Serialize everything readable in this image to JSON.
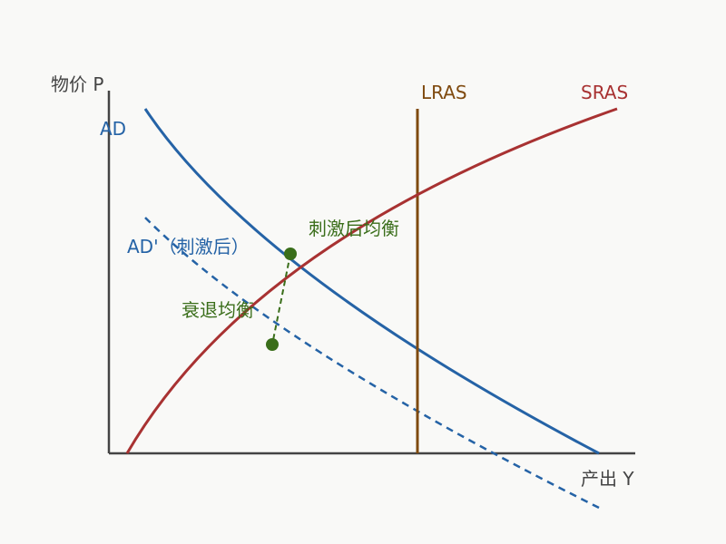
{
  "axes": {
    "y_label": "物价 P",
    "x_label": "产出 Y"
  },
  "curves": {
    "ad": "AD",
    "ad_shifted": "AD'（刺激后）",
    "lras": "LRAS",
    "sras": "SRAS"
  },
  "points": {
    "stimulus_equilibrium": "刺激后均衡",
    "recession_equilibrium": "衰退均衡"
  }
}
